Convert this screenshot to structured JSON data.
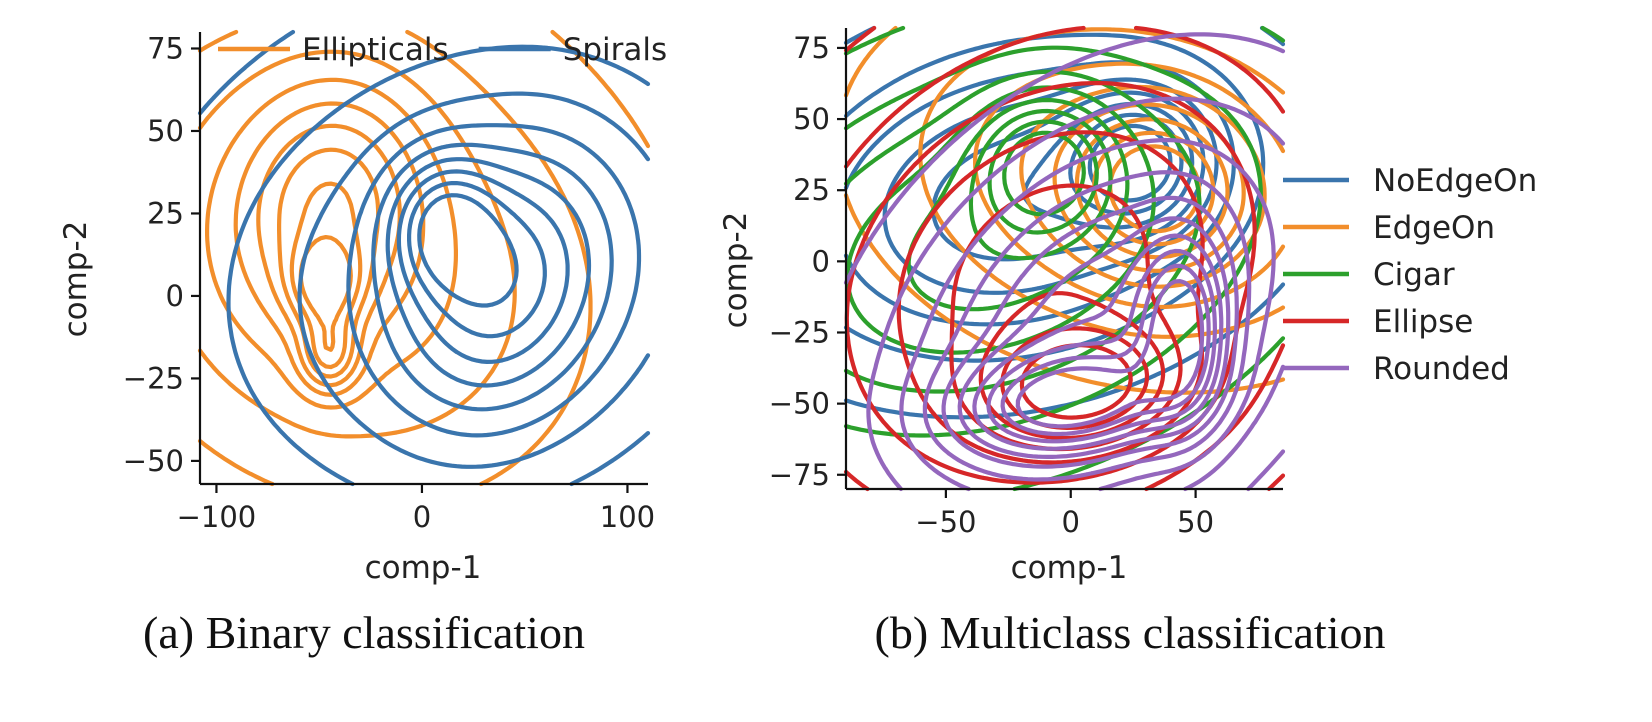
{
  "chart_data": [
    {
      "type": "contour",
      "xlabel": "comp-1",
      "ylabel": "comp-2",
      "xlim": [
        -108,
        110
      ],
      "ylim": [
        -57,
        80
      ],
      "xticks": [
        -100,
        0,
        100
      ],
      "xtick_labels": [
        "−100",
        "0",
        "100"
      ],
      "yticks": [
        -50,
        -25,
        0,
        25,
        50,
        75
      ],
      "ytick_labels": [
        "−50",
        "−25",
        "0",
        "25",
        "50",
        "75"
      ],
      "legend_position": "top",
      "caption": "(a) Binary classification",
      "series": [
        {
          "name": "Ellipticals",
          "color": "#f28e2b",
          "levels": 9,
          "components": [
            {
              "cx": -39,
              "cy": 8,
              "rx": 90,
              "ry": 52,
              "tilt": -8
            },
            {
              "cx": -45,
              "cy": 30,
              "rx": 30,
              "ry": 24,
              "tilt": 10
            },
            {
              "cx": -45,
              "cy": -18,
              "rx": 10,
              "ry": 8,
              "tilt": 0
            },
            {
              "cx": -47,
              "cy": 3,
              "rx": 12,
              "ry": 9,
              "tilt": 0
            }
          ]
        },
        {
          "name": "Spirals",
          "color": "#3a75ad",
          "levels": 9,
          "components": [
            {
              "cx": 30,
              "cy": 6,
              "rx": 90,
              "ry": 48,
              "tilt": 5
            },
            {
              "cx": 40,
              "cy": 3,
              "rx": 35,
              "ry": 26,
              "tilt": 20
            },
            {
              "cx": 10,
              "cy": 22,
              "rx": 18,
              "ry": 14,
              "tilt": 0
            }
          ]
        }
      ]
    },
    {
      "type": "contour",
      "xlabel": "comp-1",
      "ylabel": "comp-2",
      "xlim": [
        -90,
        85
      ],
      "ylim": [
        -80,
        82
      ],
      "xticks": [
        -50,
        0,
        50
      ],
      "xtick_labels": [
        "−50",
        "0",
        "50"
      ],
      "yticks": [
        -75,
        -50,
        -25,
        0,
        25,
        50,
        75
      ],
      "ytick_labels": [
        "−75",
        "−50",
        "−25",
        "0",
        "25",
        "50",
        "75"
      ],
      "legend_position": "right",
      "caption": "(b) Multiclass classification",
      "series": [
        {
          "name": "NoEdgeOn",
          "color": "#3a75ad",
          "levels": 8,
          "components": [
            {
              "cx": -20,
              "cy": 22,
              "rx": 60,
              "ry": 35,
              "tilt": 10
            },
            {
              "cx": 28,
              "cy": 36,
              "rx": 18,
              "ry": 16,
              "tilt": 0
            }
          ]
        },
        {
          "name": "EdgeOn",
          "color": "#f28e2b",
          "levels": 8,
          "components": [
            {
              "cx": 25,
              "cy": 28,
              "rx": 58,
              "ry": 35,
              "tilt": -10
            },
            {
              "cx": 35,
              "cy": 25,
              "rx": 20,
              "ry": 18,
              "tilt": 0
            }
          ]
        },
        {
          "name": "Cigar",
          "color": "#2ca02c",
          "levels": 8,
          "components": [
            {
              "cx": -30,
              "cy": 5,
              "rx": 70,
              "ry": 40,
              "tilt": 15
            },
            {
              "cx": -10,
              "cy": 35,
              "rx": 18,
              "ry": 16,
              "tilt": 0
            }
          ]
        },
        {
          "name": "Ellipse",
          "color": "#d62728",
          "levels": 8,
          "components": [
            {
              "cx": -8,
              "cy": -5,
              "rx": 70,
              "ry": 52,
              "tilt": 25
            },
            {
              "cx": 5,
              "cy": -45,
              "rx": 26,
              "ry": 14,
              "tilt": 5
            }
          ]
        },
        {
          "name": "Rounded",
          "color": "#9467bd",
          "levels": 10,
          "components": [
            {
              "cx": 10,
              "cy": -20,
              "rx": 60,
              "ry": 40,
              "tilt": 35
            },
            {
              "cx": 0,
              "cy": -50,
              "rx": 30,
              "ry": 12,
              "tilt": 5
            },
            {
              "cx": 45,
              "cy": -25,
              "rx": 12,
              "ry": 22,
              "tilt": 0
            }
          ]
        }
      ]
    }
  ]
}
